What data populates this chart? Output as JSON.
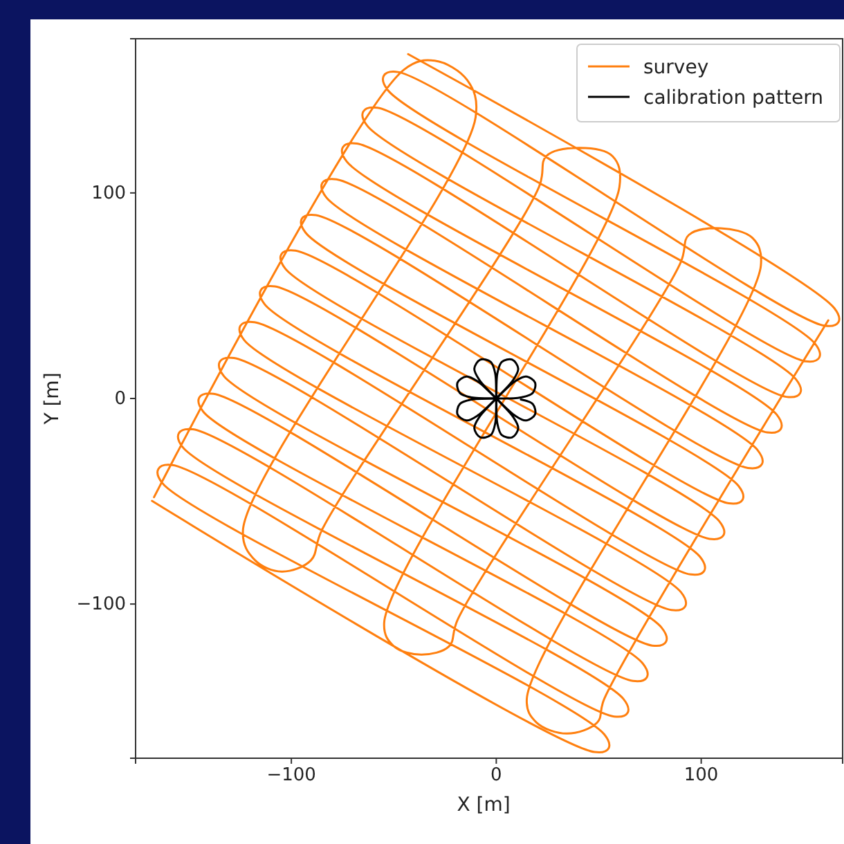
{
  "chart_data": {
    "type": "line",
    "xlabel": "X [m]",
    "ylabel": "Y [m]",
    "xlim": [
      -176,
      169
    ],
    "ylim": [
      -175,
      175
    ],
    "xticks": [
      {
        "value": -100,
        "label": "−100"
      },
      0,
      100
    ],
    "yticks": [
      {
        "value": -100,
        "label": "−100"
      },
      0,
      100
    ],
    "legend": "top right",
    "line_style": "solid",
    "series": [
      {
        "name": "survey",
        "color": "#ff7f0e",
        "x": [
          -168,
          48.0,
          54.8,
          52.7,
          -163,
          -164.9,
          -158,
          57.4,
          64.1,
          62.0,
          -153,
          -154.9,
          -148,
          66.7,
          73.5,
          71.4,
          -143,
          -144.9,
          -138,
          76.1,
          82.8,
          80.7,
          -133,
          -134.9,
          -128,
          85.4,
          92.2,
          90.1,
          -123,
          -124.9,
          -118,
          94.8,
          101.5,
          99.4,
          -113,
          -114.9,
          -108,
          104.1,
          110.9,
          108.8,
          -103,
          -104.9,
          -98,
          113.5,
          120.2,
          118.1,
          -93,
          -94.9,
          -88,
          122.8,
          129.6,
          127.5,
          -83,
          -84.9,
          -78,
          132.2,
          138.9,
          136.8,
          -73,
          -74.9,
          -68,
          141.5,
          148.3,
          146.2,
          -63,
          -64.9,
          -58,
          150.9,
          157.6,
          155.5,
          -53,
          -54.9,
          -48,
          160.2,
          167.0,
          164.9,
          -43,
          null,
          -167,
          -45,
          -30,
          -14.2,
          -10.1,
          -123.6,
          -117.6,
          -104.7,
          -90.5,
          -85.1,
          20.9,
          24.3,
          40.5,
          56.8,
          60.1,
          -54.7,
          -50,
          -36.5,
          -23,
          -18.9,
          89.9,
          93.9,
          109.5,
          125,
          129.1,
          14.9,
          19.6,
          34.5,
          49.3,
          52.7,
          162
        ],
        "values": [
          -49.8,
          -172.0,
          -170.2,
          -163.4,
          -41.1,
          -34.3,
          -32.4,
          -154.7,
          -152.9,
          -146.1,
          -23.7,
          -16.9,
          -15.0,
          -137.4,
          -135.6,
          -128.8,
          -6.4,
          0.5,
          2.3,
          -120.2,
          -118.4,
          -111.5,
          11.0,
          17.9,
          19.7,
          -102.9,
          -101.1,
          -94.2,
          28.4,
          35.3,
          37.1,
          -85.6,
          -83.8,
          -77.0,
          45.8,
          52.7,
          54.5,
          -68.3,
          -66.5,
          -59.7,
          63.2,
          70.1,
          71.9,
          -51.0,
          -49.2,
          -42.4,
          80.6,
          87.4,
          89.2,
          -33.8,
          -32.0,
          -25.1,
          97.9,
          104.8,
          106.6,
          -16.5,
          -14.7,
          -7.8,
          115.3,
          122.2,
          124.0,
          0.8,
          2.6,
          9.4,
          132.7,
          139.6,
          141.4,
          18.1,
          19.9,
          26.7,
          150.1,
          157.0,
          158.8,
          35.4,
          37.2,
          44.0,
          167.5,
          null,
          -48,
          160,
          164.3,
          154.9,
          136.7,
          -64.0,
          -78.8,
          -84.2,
          -78.8,
          -64.0,
          103.0,
          117.8,
          121.9,
          117.8,
          103.0,
          -109.1,
          -120.5,
          -124.6,
          -120.5,
          -107.7,
          66.0,
          79.5,
          82.8,
          78.1,
          64.6,
          -146.1,
          -157.6,
          -163,
          -157.6,
          -146.1,
          38
        ]
      },
      {
        "name": "calibration pattern",
        "color": "#000000",
        "x": [
          0,
          12.0,
          17.8,
          18.9,
          14.5,
          8.8,
          0,
          8.1,
          10.7,
          7.8,
          2.7,
          0.5,
          0,
          -0.5,
          -2.7,
          -7.8,
          -10.7,
          -8.1,
          0,
          -8.8,
          -14.5,
          -18.9,
          -17.8,
          -12.0,
          0,
          -12.0,
          -17.8,
          -18.9,
          -14.5,
          -8.8,
          0,
          -8.1,
          -10.7,
          -7.8,
          -2.7,
          -0.5,
          0,
          0.5,
          2.7,
          7.8,
          10.7,
          8.1,
          0,
          8.8,
          14.5,
          18.9,
          17.8,
          12.0
        ],
        "values": [
          0,
          0.5,
          2.7,
          7.8,
          10.7,
          8.1,
          0,
          8.8,
          14.5,
          18.9,
          17.8,
          12.0,
          0,
          12.0,
          17.8,
          18.9,
          14.5,
          8.8,
          0,
          8.1,
          10.7,
          7.8,
          2.7,
          0.5,
          0,
          -0.5,
          -2.7,
          -7.8,
          -10.7,
          -8.1,
          0,
          -8.8,
          -14.5,
          -18.9,
          -17.8,
          -12.0,
          0,
          -12.0,
          -17.8,
          -18.9,
          -14.5,
          -8.8,
          0,
          -8.1,
          -10.7,
          -7.8,
          -2.7,
          -0.5
        ]
      }
    ]
  }
}
